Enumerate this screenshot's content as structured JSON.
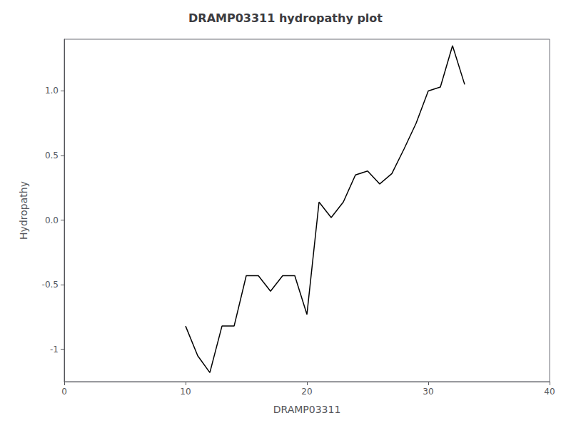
{
  "chart_data": {
    "type": "line",
    "title": "DRAMP03311 hydropathy plot",
    "xlabel": "DRAMP03311",
    "ylabel": "Hydropathy",
    "x": [
      10,
      11,
      12,
      13,
      14,
      15,
      16,
      17,
      18,
      19,
      20,
      21,
      22,
      23,
      24,
      25,
      26,
      27,
      28,
      29,
      30,
      31,
      32,
      33
    ],
    "values": [
      -0.82,
      -1.05,
      -1.18,
      -0.82,
      -0.82,
      -0.43,
      -0.43,
      -0.55,
      -0.43,
      -0.43,
      -0.73,
      0.14,
      0.02,
      0.14,
      0.35,
      0.38,
      0.28,
      0.36,
      0.55,
      0.75,
      1.0,
      1.03,
      1.35,
      1.05
    ],
    "color": "#000000",
    "xlim": [
      0,
      40
    ],
    "xticks": [
      0,
      10,
      20,
      30,
      40
    ],
    "ylim": [
      -1.25,
      1.4
    ],
    "yticks": [
      -1,
      -0.5,
      {
        "value": 0,
        "label": "0.0"
      },
      0.5,
      {
        "value": 1,
        "label": "1.0"
      }
    ],
    "grid": false
  }
}
